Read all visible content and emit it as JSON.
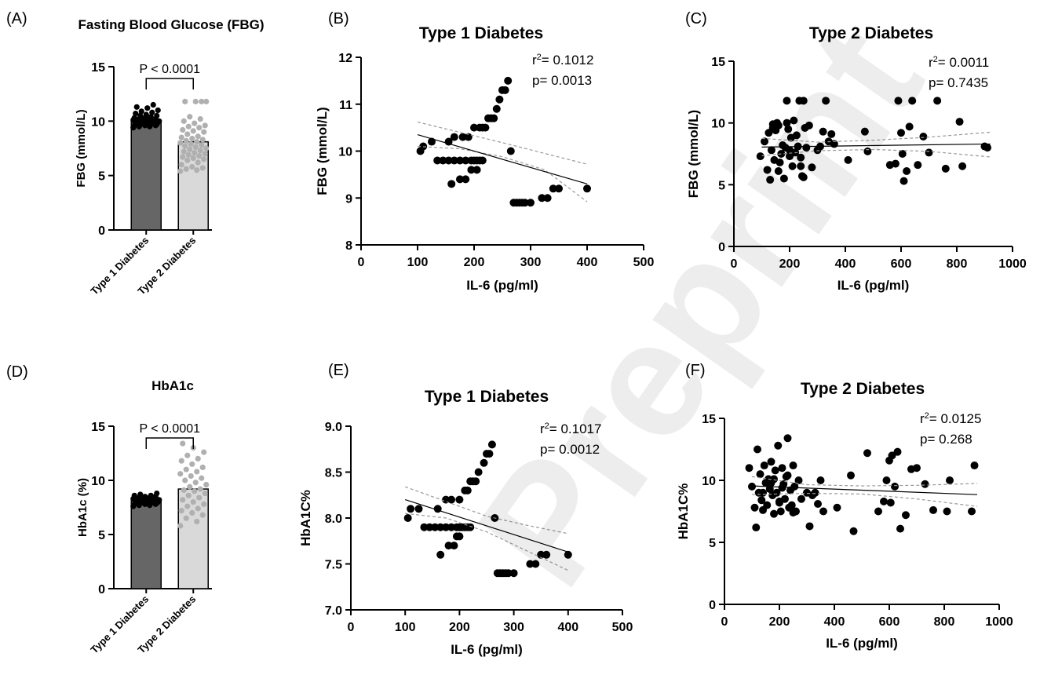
{
  "watermark_text": "Preprint",
  "panels": {
    "A": {
      "letter": "(A)"
    },
    "B": {
      "letter": "(B)"
    },
    "C": {
      "letter": "(C)"
    },
    "D": {
      "letter": "(D)"
    },
    "E": {
      "letter": "(E)"
    },
    "F": {
      "letter": "(F)"
    }
  },
  "chart_data": [
    {
      "panel": "A",
      "type": "bar",
      "title": "Fasting Blood Glucose (FBG)",
      "ylabel": "FBG (mmol/L)",
      "xlabel": "",
      "categories": [
        "Type 1 Diabetes",
        "Type 2 Diabetes"
      ],
      "values": [
        9.9,
        8.1
      ],
      "bar_colors": [
        "#666666",
        "#d9d9d9"
      ],
      "point_colors": [
        "#000000",
        "#b0b0b0"
      ],
      "ylim": [
        0,
        15
      ],
      "yticks": [
        0,
        5,
        10,
        15
      ],
      "significance": "P < 0.0001",
      "points": [
        [
          9.4,
          9.5,
          9.5,
          9.6,
          9.6,
          9.6,
          9.7,
          9.7,
          9.7,
          9.8,
          9.8,
          9.8,
          9.8,
          9.9,
          9.9,
          9.9,
          9.9,
          10.0,
          10.0,
          10.0,
          10.0,
          10.1,
          10.1,
          10.1,
          10.2,
          10.2,
          10.2,
          10.3,
          10.3,
          10.4,
          10.5,
          10.5,
          10.6,
          10.7,
          10.8,
          10.9,
          11.0,
          11.2,
          11.3,
          11.5
        ],
        [
          5.4,
          5.5,
          5.6,
          5.7,
          5.8,
          6.0,
          6.2,
          6.4,
          6.5,
          6.6,
          6.7,
          6.8,
          6.9,
          7.0,
          7.1,
          7.2,
          7.3,
          7.4,
          7.5,
          7.6,
          7.7,
          7.8,
          7.9,
          8.0,
          8.1,
          8.2,
          8.3,
          8.4,
          8.5,
          8.6,
          8.8,
          9.0,
          9.1,
          9.2,
          9.4,
          9.5,
          9.6,
          9.8,
          10.0,
          10.2,
          10.4,
          11.8,
          11.8,
          11.8,
          11.8
        ]
      ]
    },
    {
      "panel": "B",
      "type": "scatter",
      "title": "Type 1 Diabetes",
      "xlabel": "IL-6 (pg/ml)",
      "ylabel": "FBG  (mmol/L)",
      "xlim": [
        0,
        500
      ],
      "ylim": [
        8,
        12
      ],
      "xticks": [
        0,
        100,
        200,
        300,
        400,
        500
      ],
      "yticks": [
        8,
        9,
        10,
        11,
        12
      ],
      "stats": {
        "r2_label": "r",
        "r2_sup": "2",
        "r2_value": "= 0.1012",
        "p_text": "p= 0.0013"
      },
      "regression": {
        "x": [
          100,
          400
        ],
        "y": [
          10.35,
          9.3
        ]
      },
      "ci_upper": {
        "x": [
          100,
          175,
          250,
          325,
          400
        ],
        "y": [
          10.62,
          10.4,
          10.18,
          9.95,
          9.72
        ]
      },
      "ci_lower": {
        "x": [
          100,
          175,
          250,
          325,
          400
        ],
        "y": [
          10.1,
          10.05,
          9.88,
          9.6,
          8.92
        ]
      },
      "x": [
        105,
        110,
        125,
        155,
        165,
        135,
        145,
        155,
        165,
        175,
        185,
        195,
        200,
        205,
        210,
        215,
        160,
        175,
        185,
        195,
        205,
        180,
        190,
        200,
        210,
        215,
        220,
        225,
        230,
        235,
        240,
        245,
        250,
        255,
        260,
        265,
        270,
        275,
        280,
        285,
        290,
        300,
        320,
        330,
        340,
        350,
        400
      ],
      "y": [
        10.0,
        10.1,
        10.2,
        10.2,
        10.3,
        9.8,
        9.8,
        9.8,
        9.8,
        9.8,
        9.8,
        9.8,
        9.8,
        9.8,
        9.8,
        9.8,
        9.3,
        9.4,
        9.4,
        9.6,
        9.6,
        10.3,
        10.3,
        10.5,
        10.5,
        10.5,
        10.5,
        10.7,
        10.7,
        10.7,
        10.9,
        11.1,
        11.3,
        11.3,
        11.5,
        10.0,
        8.9,
        8.9,
        8.9,
        8.9,
        8.9,
        8.9,
        9.0,
        9.0,
        9.2,
        9.2,
        9.2
      ]
    },
    {
      "panel": "C",
      "type": "scatter",
      "title": "Type 2 Diabetes",
      "xlabel": "IL-6 (pg/ml)",
      "ylabel": "FBG (mmol/L)",
      "xlim": [
        0,
        1000
      ],
      "ylim": [
        0,
        15
      ],
      "xticks": [
        0,
        200,
        400,
        600,
        800,
        1000
      ],
      "yticks": [
        0,
        5,
        10,
        15
      ],
      "stats": {
        "r2_label": "r",
        "r2_sup": "2",
        "r2_value": "= 0.0011",
        "p_text": "p= 0.7435"
      },
      "regression": {
        "x": [
          100,
          920
        ],
        "y": [
          8.05,
          8.3
        ]
      },
      "ci_upper": {
        "x": [
          100,
          300,
          500,
          700,
          920
        ],
        "y": [
          8.75,
          8.45,
          8.6,
          8.85,
          9.25
        ]
      },
      "ci_lower": {
        "x": [
          100,
          300,
          500,
          700,
          920
        ],
        "y": [
          7.35,
          7.75,
          7.85,
          7.7,
          7.25
        ]
      },
      "x": [
        95,
        110,
        120,
        125,
        130,
        135,
        140,
        145,
        150,
        155,
        160,
        165,
        170,
        175,
        180,
        185,
        190,
        195,
        200,
        205,
        210,
        215,
        220,
        225,
        230,
        235,
        240,
        245,
        250,
        255,
        260,
        270,
        280,
        300,
        310,
        320,
        330,
        340,
        350,
        360,
        410,
        470,
        480,
        560,
        580,
        590,
        600,
        605,
        610,
        620,
        630,
        640,
        660,
        680,
        700,
        730,
        760,
        810,
        820,
        900,
        910,
        140,
        160,
        190,
        200,
        240,
        250
      ],
      "y": [
        7.3,
        8.5,
        6.2,
        9.2,
        5.4,
        7.8,
        9.6,
        7.0,
        9.4,
        10.0,
        9.8,
        6.8,
        7.5,
        8.2,
        5.5,
        8.0,
        11.8,
        9.5,
        7.8,
        8.8,
        6.5,
        10.2,
        7.6,
        9.0,
        8.1,
        11.8,
        7.2,
        5.7,
        11.8,
        9.6,
        8.0,
        9.8,
        6.4,
        7.8,
        8.1,
        9.3,
        11.8,
        8.5,
        9.1,
        8.3,
        7.0,
        9.3,
        7.7,
        6.6,
        6.7,
        11.8,
        9.2,
        7.5,
        5.3,
        6.1,
        9.7,
        11.8,
        6.6,
        8.9,
        7.6,
        11.8,
        6.3,
        10.1,
        6.5,
        8.1,
        8.0,
        9.9,
        6.1,
        10.0,
        7.3,
        6.5,
        5.6
      ]
    },
    {
      "panel": "D",
      "type": "bar",
      "title": "HbA1c",
      "ylabel": "HbA1c  (%)",
      "xlabel": "",
      "categories": [
        "Type 1 Diabetes",
        "Type 2 Diabetes"
      ],
      "values": [
        8.1,
        9.2
      ],
      "bar_colors": [
        "#666666",
        "#d9d9d9"
      ],
      "point_colors": [
        "#000000",
        "#b0b0b0"
      ],
      "ylim": [
        0,
        15
      ],
      "yticks": [
        0,
        5,
        10,
        15
      ],
      "significance": "P < 0.0001",
      "points": [
        [
          7.6,
          7.7,
          7.7,
          7.8,
          7.8,
          7.8,
          7.9,
          7.9,
          7.9,
          7.9,
          8.0,
          8.0,
          8.0,
          8.0,
          8.1,
          8.1,
          8.1,
          8.1,
          8.2,
          8.2,
          8.2,
          8.3,
          8.3,
          8.3,
          8.4,
          8.4,
          8.5,
          8.5,
          8.6,
          8.6,
          8.7,
          8.8
        ],
        [
          5.8,
          6.2,
          6.5,
          6.8,
          7.0,
          7.2,
          7.4,
          7.6,
          7.8,
          8.0,
          8.2,
          8.4,
          8.6,
          8.8,
          9.0,
          9.1,
          9.2,
          9.4,
          9.6,
          9.8,
          10.0,
          10.2,
          10.4,
          10.6,
          10.8,
          11.0,
          11.2,
          11.5,
          11.8,
          12.0,
          12.3,
          12.6,
          13.0,
          13.4
        ]
      ]
    },
    {
      "panel": "E",
      "type": "scatter",
      "title": "Type 1 Diabetes",
      "xlabel": "IL-6 (pg/ml)",
      "ylabel": "HbA1C%",
      "xlim": [
        0,
        500
      ],
      "ylim": [
        7.0,
        9.0
      ],
      "xticks": [
        0,
        100,
        200,
        300,
        400,
        500
      ],
      "yticks": [
        7.0,
        7.5,
        8.0,
        8.5,
        9.0
      ],
      "ytick_labels": [
        "7.0",
        "7.5",
        "8.0",
        "8.5",
        "9.0"
      ],
      "stats": {
        "r2_label": "r",
        "r2_sup": "2",
        "r2_value": "= 0.1017",
        "p_text": "p= 0.0012"
      },
      "regression": {
        "x": [
          100,
          400
        ],
        "y": [
          8.2,
          7.63
        ]
      },
      "ci_upper": {
        "x": [
          100,
          175,
          250,
          325,
          400
        ],
        "y": [
          8.34,
          8.18,
          8.02,
          7.92,
          7.83
        ]
      },
      "ci_lower": {
        "x": [
          100,
          175,
          250,
          325,
          400
        ],
        "y": [
          8.05,
          8.0,
          7.85,
          7.64,
          7.43
        ]
      },
      "x": [
        105,
        110,
        125,
        160,
        135,
        145,
        155,
        165,
        175,
        185,
        195,
        200,
        205,
        210,
        215,
        220,
        165,
        180,
        190,
        195,
        200,
        175,
        185,
        200,
        210,
        215,
        220,
        225,
        230,
        235,
        245,
        250,
        255,
        260,
        265,
        270,
        275,
        280,
        285,
        290,
        300,
        330,
        340,
        350,
        360,
        400
      ],
      "y": [
        8.0,
        8.1,
        8.1,
        8.1,
        7.9,
        7.9,
        7.9,
        7.9,
        7.9,
        7.9,
        7.9,
        7.9,
        7.9,
        7.9,
        7.9,
        7.9,
        7.6,
        7.7,
        7.7,
        7.8,
        7.8,
        8.2,
        8.2,
        8.2,
        8.3,
        8.3,
        8.4,
        8.4,
        8.4,
        8.5,
        8.6,
        8.7,
        8.7,
        8.8,
        8.0,
        7.4,
        7.4,
        7.4,
        7.4,
        7.4,
        7.4,
        7.5,
        7.5,
        7.6,
        7.6,
        7.6
      ]
    },
    {
      "panel": "F",
      "type": "scatter",
      "title": "Type 2 Diabetes",
      "xlabel": "IL-6 (pg/ml)",
      "ylabel": "HbA1C%",
      "xlim": [
        0,
        1000
      ],
      "ylim": [
        0,
        15
      ],
      "xticks": [
        0,
        200,
        400,
        600,
        800,
        1000
      ],
      "yticks": [
        0,
        5,
        10,
        15
      ],
      "stats": {
        "r2_label": "r",
        "r2_sup": "2",
        "r2_value": "= 0.0125",
        "p_text": "p= 0.268"
      },
      "regression": {
        "x": [
          100,
          920
        ],
        "y": [
          9.55,
          8.85
        ]
      },
      "ci_upper": {
        "x": [
          100,
          300,
          500,
          700,
          920
        ],
        "y": [
          10.3,
          9.65,
          9.55,
          9.6,
          9.75
        ]
      },
      "ci_lower": {
        "x": [
          100,
          300,
          500,
          700,
          920
        ],
        "y": [
          8.85,
          8.95,
          8.9,
          8.5,
          7.9
        ]
      },
      "x": [
        90,
        100,
        110,
        115,
        120,
        125,
        130,
        135,
        140,
        145,
        150,
        155,
        160,
        165,
        170,
        175,
        180,
        185,
        190,
        195,
        200,
        205,
        210,
        215,
        220,
        225,
        230,
        235,
        240,
        245,
        250,
        255,
        260,
        270,
        280,
        300,
        310,
        320,
        330,
        340,
        350,
        360,
        410,
        460,
        470,
        520,
        560,
        580,
        590,
        600,
        605,
        610,
        620,
        630,
        640,
        660,
        680,
        700,
        730,
        760,
        810,
        820,
        900,
        910,
        140,
        170,
        200,
        230,
        250,
        180,
        210
      ],
      "y": [
        11.0,
        9.5,
        7.8,
        6.2,
        12.5,
        9.0,
        10.5,
        8.4,
        7.6,
        11.2,
        9.8,
        8.0,
        10.1,
        9.3,
        11.5,
        8.8,
        7.3,
        10.8,
        9.0,
        12.8,
        8.2,
        7.5,
        11.0,
        9.7,
        8.5,
        10.3,
        13.4,
        7.8,
        9.2,
        8.0,
        11.2,
        9.5,
        7.5,
        10.0,
        8.5,
        9.0,
        6.3,
        8.8,
        9.0,
        8.1,
        10.0,
        7.5,
        7.8,
        10.4,
        5.9,
        12.2,
        7.5,
        8.3,
        10.0,
        11.6,
        8.2,
        12.0,
        9.5,
        12.3,
        6.1,
        7.2,
        10.9,
        11.0,
        9.7,
        7.6,
        7.5,
        10.0,
        7.5,
        11.2,
        9.0,
        9.8,
        8.3,
        10.4,
        7.4,
        10.1,
        9.4
      ]
    }
  ]
}
